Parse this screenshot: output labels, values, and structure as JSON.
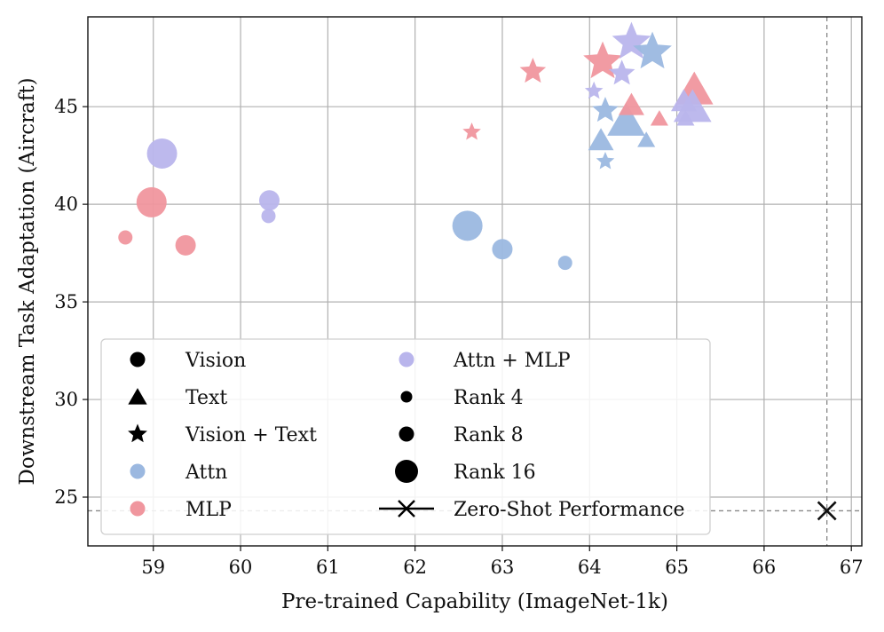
{
  "chart_data": {
    "type": "scatter",
    "xlabel": "Pre-trained Capability (ImageNet-1k)",
    "ylabel": "Downstream Task Adaptation (Aircraft)",
    "xlim": [
      58.25,
      67.12
    ],
    "ylim": [
      22.5,
      49.6
    ],
    "xticks": [
      59,
      60,
      61,
      62,
      63,
      64,
      65,
      66,
      67
    ],
    "yticks": [
      25,
      30,
      35,
      40,
      45
    ],
    "grid": true,
    "colors": {
      "Attn": "#9bb8e0",
      "MLP": "#f0969e",
      "Attn + MLP": "#b9b5ec",
      "zero_shot": "#111111",
      "reference_line": "#888888"
    },
    "points": [
      {
        "x": 59.1,
        "y": 42.6,
        "modality": "Vision",
        "module": "Attn + MLP",
        "rank": 16
      },
      {
        "x": 58.98,
        "y": 40.1,
        "modality": "Vision",
        "module": "MLP",
        "rank": 16
      },
      {
        "x": 58.68,
        "y": 38.3,
        "modality": "Vision",
        "module": "MLP",
        "rank": 4
      },
      {
        "x": 59.37,
        "y": 37.9,
        "modality": "Vision",
        "module": "MLP",
        "rank": 8
      },
      {
        "x": 60.33,
        "y": 40.2,
        "modality": "Vision",
        "module": "Attn + MLP",
        "rank": 8
      },
      {
        "x": 60.32,
        "y": 39.4,
        "modality": "Vision",
        "module": "Attn + MLP",
        "rank": 4
      },
      {
        "x": 62.6,
        "y": 38.9,
        "modality": "Vision",
        "module": "Attn",
        "rank": 16
      },
      {
        "x": 63.0,
        "y": 37.7,
        "modality": "Vision",
        "module": "Attn",
        "rank": 8
      },
      {
        "x": 63.72,
        "y": 37.0,
        "modality": "Vision",
        "module": "Attn",
        "rank": 4
      },
      {
        "x": 64.13,
        "y": 43.3,
        "modality": "Text",
        "module": "Attn",
        "rank": 8
      },
      {
        "x": 64.42,
        "y": 44.3,
        "modality": "Text",
        "module": "Attn",
        "rank": 16
      },
      {
        "x": 64.65,
        "y": 43.3,
        "modality": "Text",
        "module": "Attn",
        "rank": 4
      },
      {
        "x": 64.48,
        "y": 45.1,
        "modality": "Text",
        "module": "MLP",
        "rank": 8
      },
      {
        "x": 64.8,
        "y": 44.4,
        "modality": "Text",
        "module": "MLP",
        "rank": 4
      },
      {
        "x": 65.2,
        "y": 45.9,
        "modality": "Text",
        "module": "MLP",
        "rank": 16
      },
      {
        "x": 65.08,
        "y": 45.3,
        "modality": "Text",
        "module": "Attn + MLP",
        "rank": 8
      },
      {
        "x": 65.1,
        "y": 44.4,
        "modality": "Text",
        "module": "Attn + MLP",
        "rank": 4
      },
      {
        "x": 65.18,
        "y": 45.0,
        "modality": "Text",
        "module": "Attn + MLP",
        "rank": 16
      },
      {
        "x": 62.65,
        "y": 43.7,
        "modality": "Vision + Text",
        "module": "MLP",
        "rank": 4
      },
      {
        "x": 63.35,
        "y": 46.8,
        "modality": "Vision + Text",
        "module": "MLP",
        "rank": 8
      },
      {
        "x": 64.15,
        "y": 47.3,
        "modality": "Vision + Text",
        "module": "MLP",
        "rank": 16
      },
      {
        "x": 64.05,
        "y": 45.8,
        "modality": "Vision + Text",
        "module": "Attn + MLP",
        "rank": 4
      },
      {
        "x": 64.37,
        "y": 46.7,
        "modality": "Vision + Text",
        "module": "Attn + MLP",
        "rank": 8
      },
      {
        "x": 64.48,
        "y": 48.3,
        "modality": "Vision + Text",
        "module": "Attn + MLP",
        "rank": 16
      },
      {
        "x": 64.18,
        "y": 44.8,
        "modality": "Vision + Text",
        "module": "Attn",
        "rank": 8
      },
      {
        "x": 64.18,
        "y": 42.2,
        "modality": "Vision + Text",
        "module": "Attn",
        "rank": 4
      },
      {
        "x": 64.72,
        "y": 47.8,
        "modality": "Vision + Text",
        "module": "Attn",
        "rank": 16
      }
    ],
    "zero_shot": {
      "x": 66.72,
      "y": 24.3,
      "label": "Zero-Shot Performance"
    },
    "legend": {
      "placement": "lower-left",
      "columns": [
        [
          {
            "label": "Vision",
            "marker": "circle",
            "color": "#000000",
            "size": "medium"
          },
          {
            "label": "Text",
            "marker": "triangle",
            "color": "#000000",
            "size": "medium"
          },
          {
            "label": "Vision + Text",
            "marker": "star",
            "color": "#000000",
            "size": "medium"
          },
          {
            "label": "Attn",
            "marker": "circle",
            "color": "#9bb8e0",
            "size": "medium"
          },
          {
            "label": "MLP",
            "marker": "circle",
            "color": "#f0969e",
            "size": "medium"
          }
        ],
        [
          {
            "label": "Attn + MLP",
            "marker": "circle",
            "color": "#b9b5ec",
            "size": "medium"
          },
          {
            "label": "Rank 4",
            "marker": "circle",
            "color": "#000000",
            "size": "small"
          },
          {
            "label": "Rank 8",
            "marker": "circle",
            "color": "#000000",
            "size": "medium"
          },
          {
            "label": "Rank 16",
            "marker": "circle",
            "color": "#000000",
            "size": "large"
          },
          {
            "label": "Zero-Shot Performance",
            "marker": "x-line",
            "color": "#000000",
            "size": "medium"
          }
        ]
      ]
    }
  }
}
